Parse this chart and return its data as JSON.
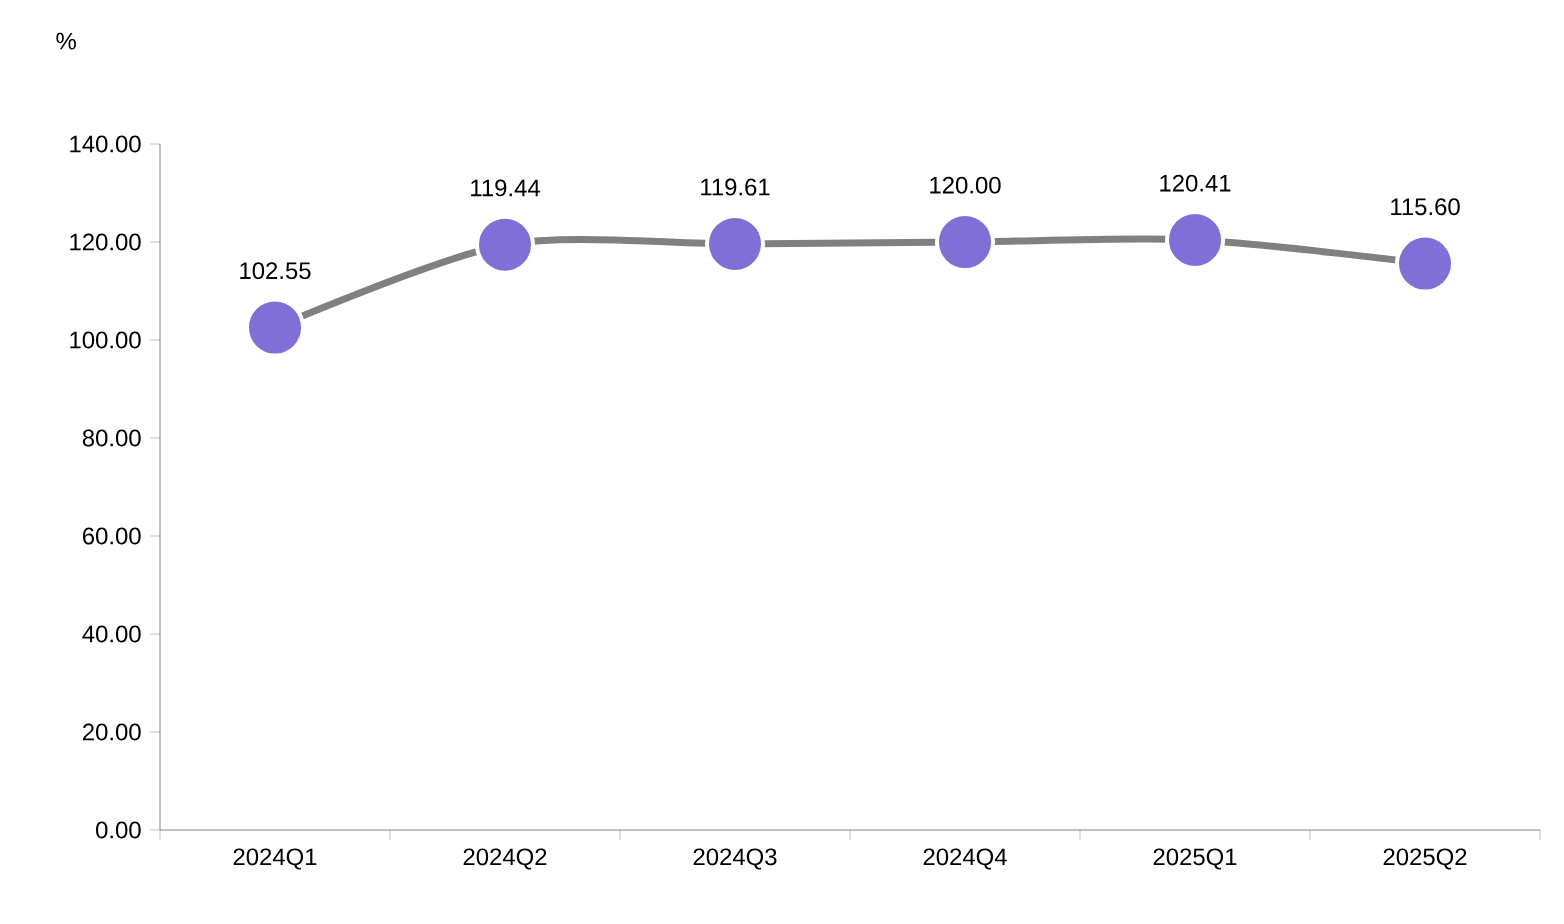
{
  "chart_data": {
    "type": "line",
    "ylabel": "%",
    "categories": [
      "2024Q1",
      "2024Q2",
      "2024Q3",
      "2024Q4",
      "2025Q1",
      "2025Q2"
    ],
    "series": [
      {
        "color": "#7f6fd6",
        "values": [
          102.55,
          119.44,
          119.61,
          120.0,
          120.41,
          115.6
        ],
        "value_labels": [
          "102.55",
          "119.44",
          "119.61",
          "120.00",
          "120.41",
          "115.60"
        ]
      }
    ],
    "ylim": [
      0,
      140
    ],
    "yticks": [
      {
        "value": 0,
        "label": "0.00"
      },
      {
        "value": 20,
        "label": "20.00"
      },
      {
        "value": 40,
        "label": "40.00"
      },
      {
        "value": 60,
        "label": "60.00"
      },
      {
        "value": 80,
        "label": "80.00"
      },
      {
        "value": 100,
        "label": "100.00"
      },
      {
        "value": 120,
        "label": "120.00"
      },
      {
        "value": 140,
        "label": "140.00"
      }
    ],
    "marker": "circle",
    "line_style": "solid"
  }
}
